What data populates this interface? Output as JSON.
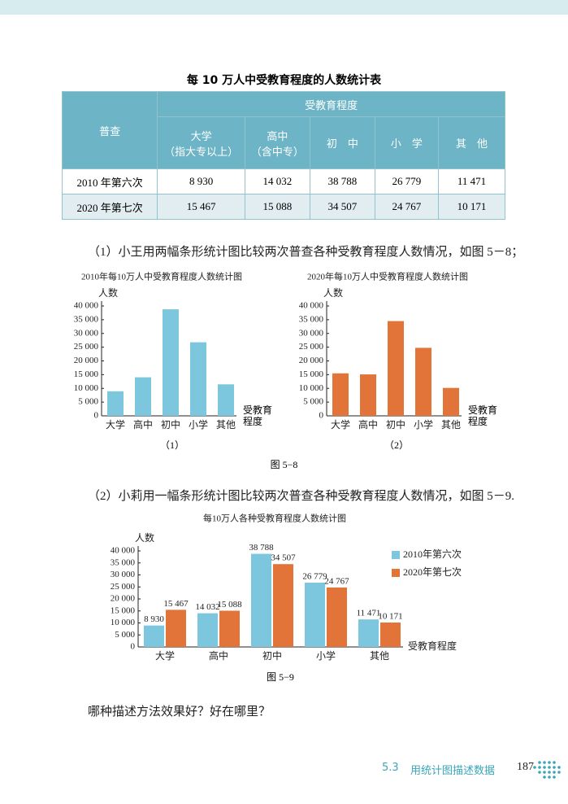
{
  "table_title": "每 10 万人中受教育程度的人数统计表",
  "table": {
    "corner": "普查",
    "group": "受教育程度",
    "columns": [
      [
        "大学",
        "（指大专以上）"
      ],
      [
        "高中",
        "（含中专）"
      ],
      [
        "初　中"
      ],
      [
        "小　学"
      ],
      [
        "其　他"
      ]
    ],
    "rows": [
      [
        "2010 年第六次",
        "8 930",
        "14 032",
        "38 788",
        "26 779",
        "11 471"
      ],
      [
        "2020 年第七次",
        "15 467",
        "15 088",
        "34 507",
        "24 767",
        "10 171"
      ]
    ]
  },
  "paragraphs": [
    "（1）小王用两幅条形统计图比较两次普查各种受教育程度人数情况，如图 5－8；",
    "（2）小莉用一幅条形统计图比较两次普查各种受教育程度人数情况，如图 5－9.",
    "哪种描述方法效果好？好在哪里？"
  ],
  "captions": [
    "图 5−8",
    "图 5−9"
  ],
  "chart_data": [
    {
      "type": "bar",
      "title": "2010年每10万人中受教育程度人数统计图",
      "y_label": "人数",
      "x_label": "受教育程度",
      "subcaption": "（1）",
      "categories": [
        "大学",
        "高中",
        "初中",
        "小学",
        "其他"
      ],
      "values": [
        8930,
        14032,
        38788,
        26779,
        11471
      ],
      "color": "#7cc6de",
      "ylim": [
        0,
        40000
      ],
      "yticks": [
        0,
        {
          "value": 5000,
          "label": "5 000"
        },
        {
          "value": 10000,
          "label": "10 000"
        },
        {
          "value": 15000,
          "label": "15 000"
        },
        {
          "value": 20000,
          "label": "20 000"
        },
        {
          "value": 25000,
          "label": "25 000"
        },
        {
          "value": 30000,
          "label": "30 000"
        },
        {
          "value": 35000,
          "label": "35 000"
        },
        {
          "value": 40000,
          "label": "40 000"
        }
      ]
    },
    {
      "type": "bar",
      "title": "2020年每10万人中受教育程度人数统计图",
      "y_label": "人数",
      "x_label": "受教育程度",
      "subcaption": "（2）",
      "categories": [
        "大学",
        "高中",
        "初中",
        "小学",
        "其他"
      ],
      "values": [
        15467,
        15088,
        34507,
        24767,
        10171
      ],
      "color": "#e2743a",
      "ylim": [
        0,
        40000
      ],
      "yticks": [
        0,
        {
          "value": 5000,
          "label": "5 000"
        },
        {
          "value": 10000,
          "label": "10 000"
        },
        {
          "value": 15000,
          "label": "15 000"
        },
        {
          "value": 20000,
          "label": "20 000"
        },
        {
          "value": 25000,
          "label": "25 000"
        },
        {
          "value": 30000,
          "label": "30 000"
        },
        {
          "value": 35000,
          "label": "35 000"
        },
        {
          "value": 40000,
          "label": "40 000"
        }
      ]
    },
    {
      "type": "grouped_bar",
      "title": "每10万人各种受教育程度人数统计图",
      "y_label": "人数",
      "x_label": "受教育程度",
      "categories": [
        "大学",
        "高中",
        "初中",
        "小学",
        "其他"
      ],
      "series": [
        {
          "name": "2010年第六次",
          "color": "#7cc6de",
          "values": [
            8930,
            14032,
            38788,
            26779,
            11471
          ],
          "value_labels": [
            "8 930",
            "14 032",
            "38 788",
            "26 779",
            "11 471"
          ]
        },
        {
          "name": "2020年第七次",
          "color": "#e2743a",
          "values": [
            15467,
            15088,
            34507,
            24767,
            10171
          ],
          "value_labels": [
            "15 467",
            "15 088",
            "34 507",
            "24 767",
            "10 171"
          ]
        }
      ],
      "ylim": [
        0,
        40000
      ],
      "yticks": [
        0,
        {
          "value": 5000,
          "label": "5 000"
        },
        {
          "value": 10000,
          "label": "10 000"
        },
        {
          "value": 15000,
          "label": "15 000"
        },
        {
          "value": 20000,
          "label": "20 000"
        },
        {
          "value": 25000,
          "label": "25 000"
        },
        {
          "value": 30000,
          "label": "30 000"
        },
        {
          "value": 35000,
          "label": "35 000"
        },
        {
          "value": 40000,
          "label": "40 000"
        }
      ]
    }
  ],
  "footer": {
    "section": "5.3",
    "section_title": "用统计图描述数据",
    "page": "187"
  }
}
